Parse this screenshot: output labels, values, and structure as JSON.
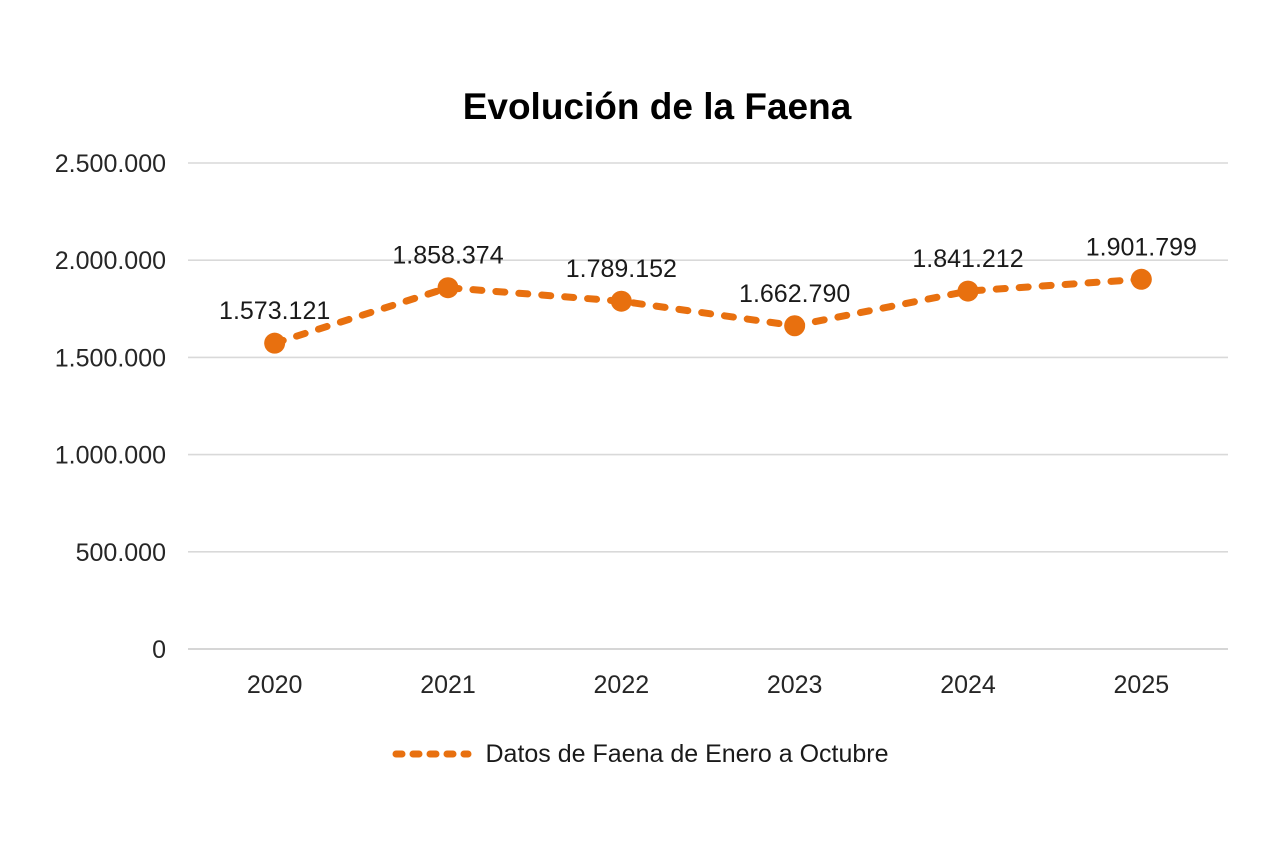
{
  "title": "Evolución de la Faena",
  "legend": {
    "label": "Datos de Faena de Enero a Octubre"
  },
  "colors": {
    "series": "#E8700F",
    "gridline": "#D9D9D9",
    "axis_line": "#C8C8C8",
    "axis_text": "#262626",
    "label_text": "#1a1a1a",
    "title_text": "#000000"
  },
  "chart_data": {
    "type": "line",
    "title": "Evolución de la Faena",
    "categories": [
      "2020",
      "2021",
      "2022",
      "2023",
      "2024",
      "2025"
    ],
    "series": [
      {
        "name": "Datos de Faena de Enero a Octubre",
        "values": [
          1573121,
          1858374,
          1789152,
          1662790,
          1841212,
          1901799
        ],
        "labels": [
          "1.573.121",
          "1.858.374",
          "1.789.152",
          "1.662.790",
          "1.841.212",
          "1.901.799"
        ],
        "color": "#E8700F",
        "line_style": "dashed",
        "marker": "circle"
      }
    ],
    "xlabel": "",
    "ylabel": "",
    "ylim": [
      0,
      2500000
    ],
    "y_ticks": [
      0,
      500000,
      1000000,
      1500000,
      2000000,
      2500000
    ],
    "y_tick_labels": [
      "0",
      "500.000",
      "1.000.000",
      "1.500.000",
      "2.000.000",
      "2.500.000"
    ],
    "grid": true,
    "legend_position": "bottom"
  }
}
